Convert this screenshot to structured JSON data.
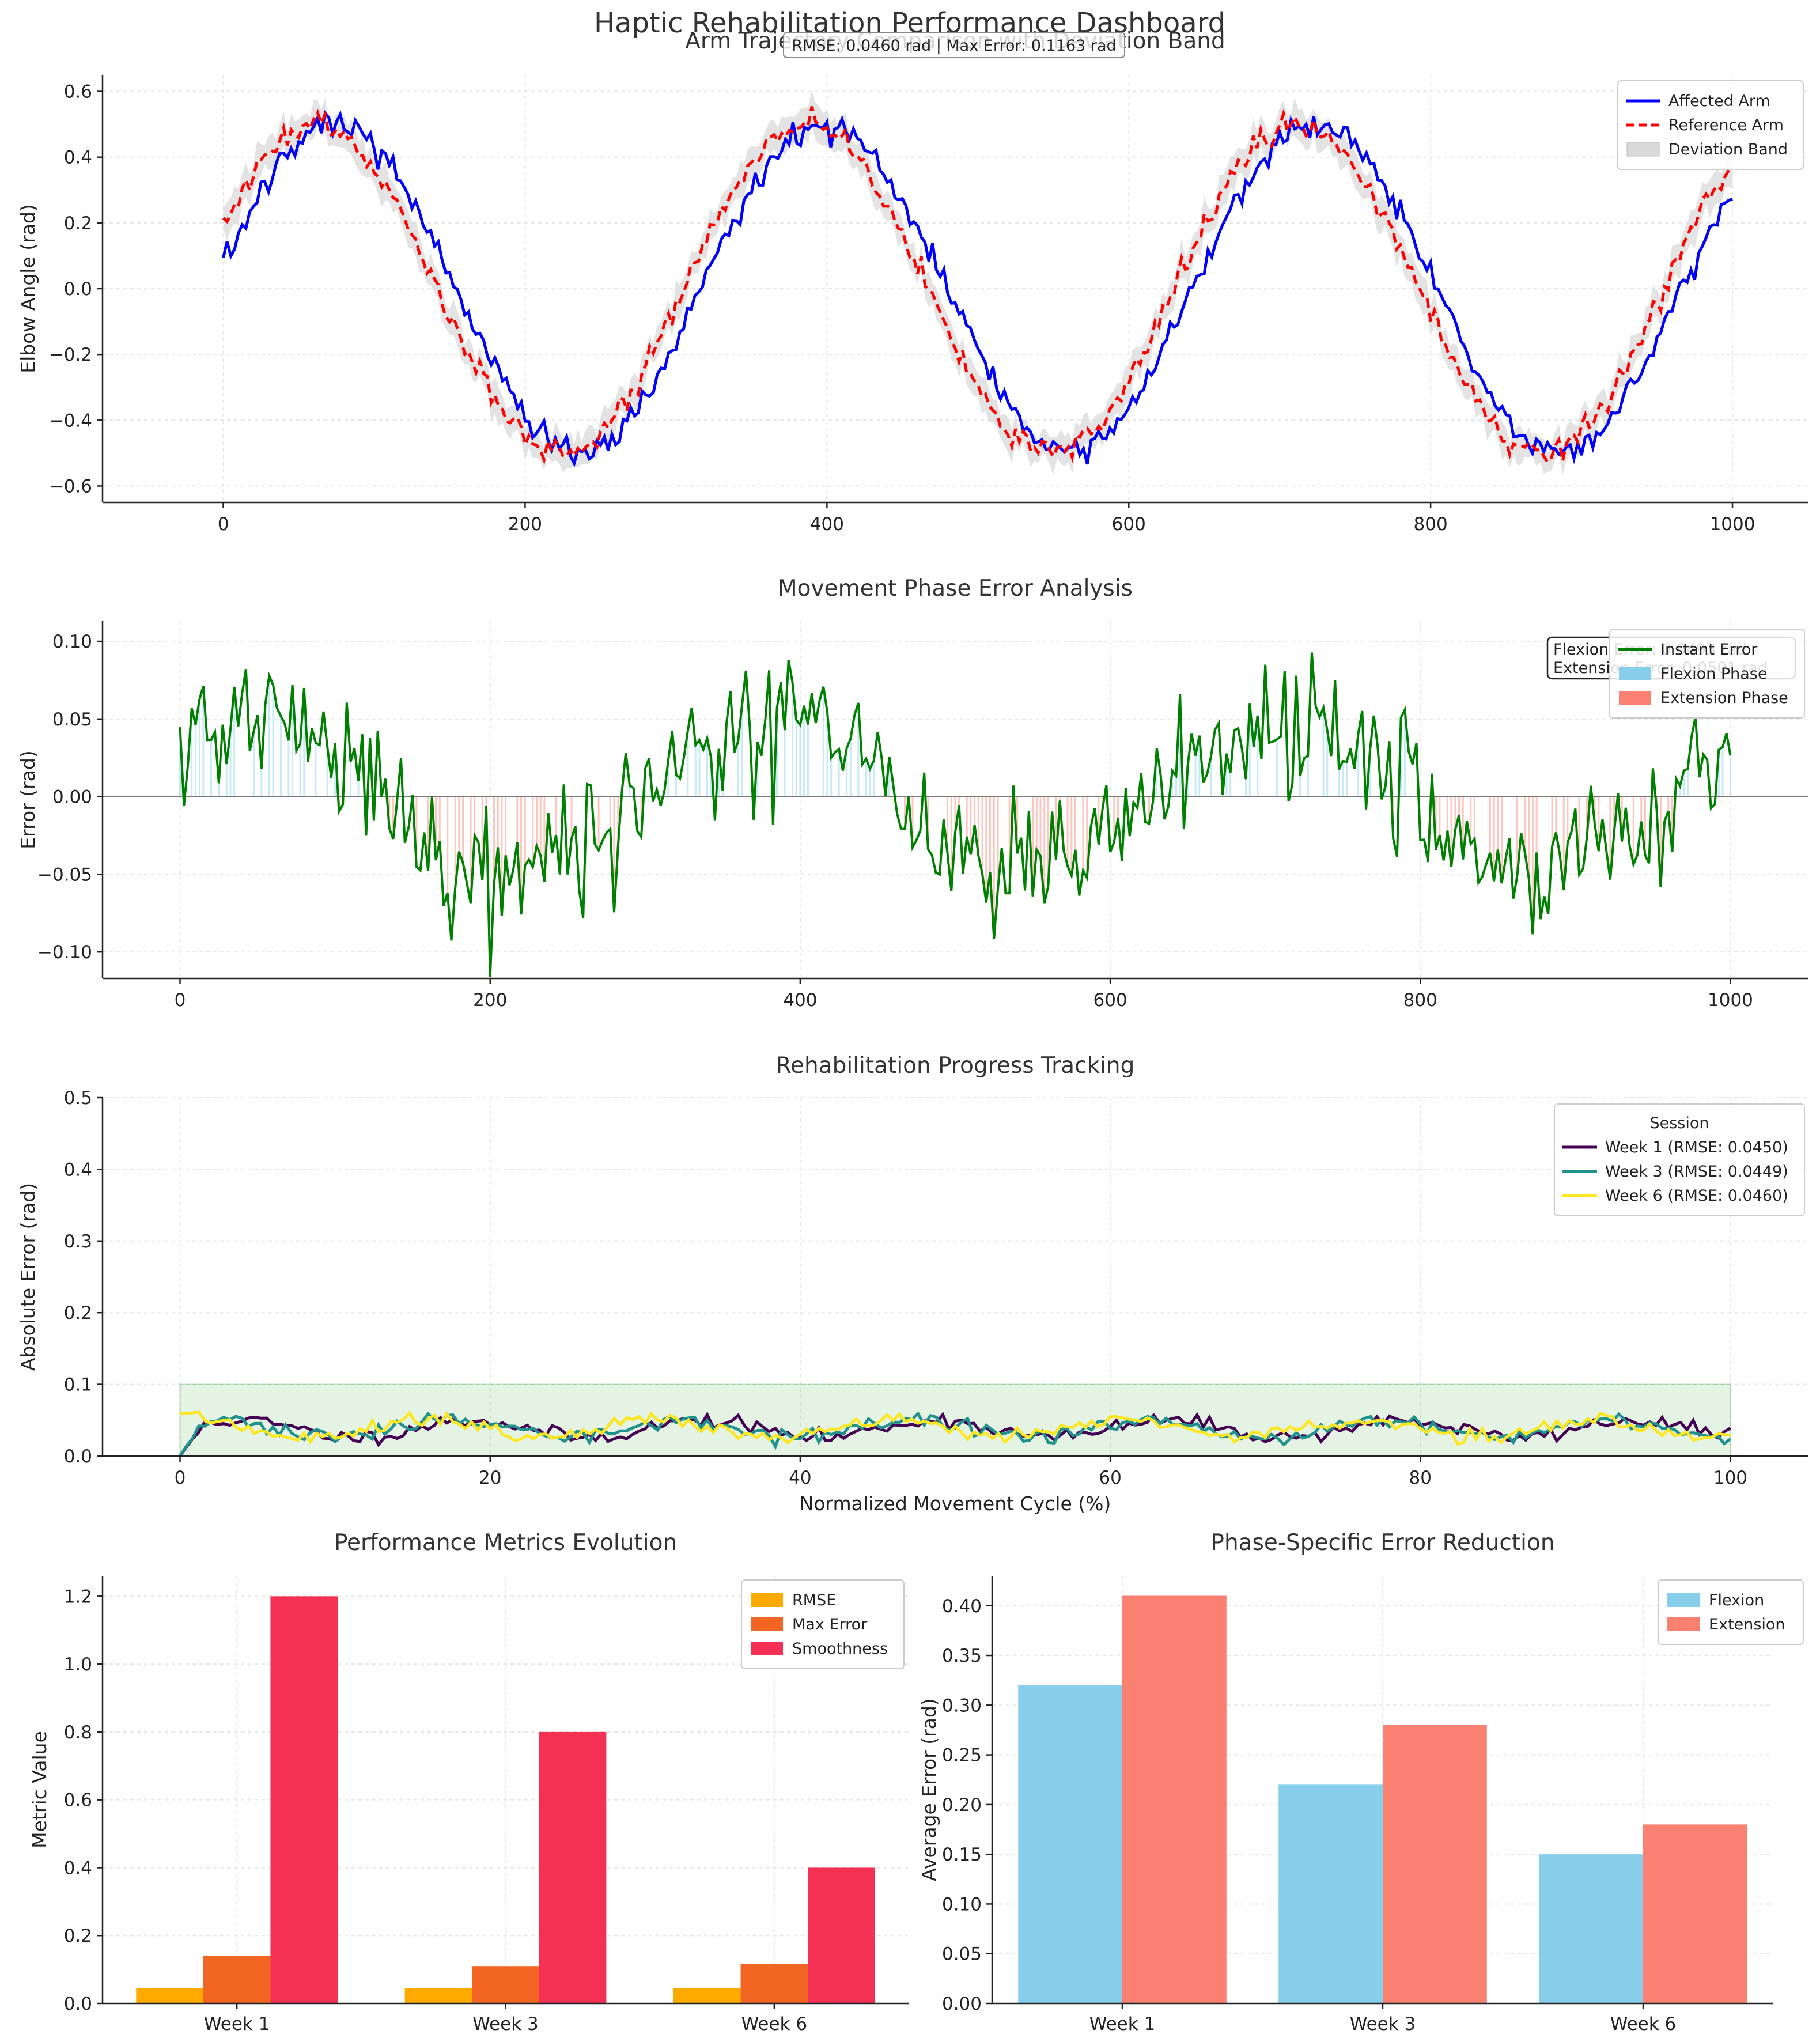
{
  "dashboard": {
    "title": "Haptic Rehabilitation Performance Dashboard"
  },
  "chart_data": [
    {
      "id": "trajectory",
      "type": "line",
      "title": "Arm Trajectory Comparison with Deviation Band",
      "annotation": "RMSE: 0.0460 rad | Max Error: 0.1163 rad",
      "xlabel": "",
      "ylabel": "Elbow Angle (rad)",
      "xlim": [
        -80,
        1050
      ],
      "ylim": [
        -0.65,
        0.65
      ],
      "xticks": [
        0,
        200,
        400,
        600,
        800,
        1000
      ],
      "yticks": [
        -0.6,
        -0.4,
        -0.2,
        0.0,
        0.2,
        0.4,
        0.6
      ],
      "grid": true,
      "legend_position": "top-right",
      "x_range": [
        0,
        1000
      ],
      "period": 325,
      "amplitude": 0.5,
      "series": [
        {
          "name": "Affected Arm",
          "color": "#0000ff",
          "style": "solid"
        },
        {
          "name": "Reference Arm",
          "color": "#ff0000",
          "style": "dashed"
        },
        {
          "name": "Deviation Band",
          "color": "#d9d9d9",
          "style": "band"
        }
      ]
    },
    {
      "id": "phase_error",
      "type": "line",
      "title": "Movement Phase Error Analysis",
      "xlabel": "",
      "ylabel": "Error (rad)",
      "xlim": [
        -50,
        1050
      ],
      "ylim": [
        -0.117,
        0.113
      ],
      "xticks": [
        0,
        200,
        400,
        600,
        800,
        1000
      ],
      "yticks": [
        -0.1,
        -0.05,
        0.0,
        0.05,
        0.1
      ],
      "grid": true,
      "legend_position": "top-right",
      "annotation_lines": [
        "Flexion Error: 0.0493 rad",
        "Extension Error: 0.0501 rad"
      ],
      "series": [
        {
          "name": "Instant Error",
          "color": "#008000"
        },
        {
          "name": "Flexion Phase",
          "color": "#87ceeb"
        },
        {
          "name": "Extension Phase",
          "color": "#fa8072"
        }
      ]
    },
    {
      "id": "progress",
      "type": "line",
      "title": "Rehabilitation Progress Tracking",
      "xlabel": "Normalized Movement Cycle (%)",
      "ylabel": "Absolute Error (rad)",
      "xlim": [
        -5,
        105
      ],
      "ylim": [
        0,
        0.5
      ],
      "xticks": [
        0,
        20,
        40,
        60,
        80,
        100
      ],
      "yticks": [
        0.0,
        0.1,
        0.2,
        0.3,
        0.4,
        0.5
      ],
      "grid": true,
      "legend_title": "Session",
      "legend_position": "top-right",
      "target_band": [
        0,
        0.1
      ],
      "series": [
        {
          "name": "Week 1 (RMSE: 0.0450)",
          "color": "#440154"
        },
        {
          "name": "Week 3 (RMSE: 0.0449)",
          "color": "#21918c"
        },
        {
          "name": "Week 6 (RMSE: 0.0460)",
          "color": "#fde725"
        }
      ]
    },
    {
      "id": "metrics",
      "type": "bar",
      "title": "Performance Metrics Evolution",
      "xlabel": "",
      "ylabel": "Metric Value",
      "categories": [
        "Week 1",
        "Week 3",
        "Week 6"
      ],
      "ylim": [
        0,
        1.26
      ],
      "yticks": [
        0.0,
        0.2,
        0.4,
        0.6,
        0.8,
        1.0,
        1.2
      ],
      "grid": true,
      "legend_position": "top-right",
      "series": [
        {
          "name": "RMSE",
          "color": "#ffaa00",
          "values": [
            0.045,
            0.045,
            0.046
          ]
        },
        {
          "name": "Max Error",
          "color": "#f26522",
          "values": [
            0.14,
            0.11,
            0.116
          ]
        },
        {
          "name": "Smoothness",
          "color": "#f43054",
          "values": [
            1.2,
            0.8,
            0.4
          ]
        }
      ]
    },
    {
      "id": "phase_reduction",
      "type": "bar",
      "title": "Phase-Specific Error Reduction",
      "xlabel": "",
      "ylabel": "Average Error (rad)",
      "categories": [
        "Week 1",
        "Week 3",
        "Week 6"
      ],
      "ylim": [
        0,
        0.43
      ],
      "yticks": [
        0.0,
        0.05,
        0.1,
        0.15,
        0.2,
        0.25,
        0.3,
        0.35,
        0.4
      ],
      "grid": true,
      "legend_position": "top-right",
      "series": [
        {
          "name": "Flexion",
          "color": "#87ceeb",
          "values": [
            0.32,
            0.22,
            0.15
          ]
        },
        {
          "name": "Extension",
          "color": "#fa8072",
          "values": [
            0.41,
            0.28,
            0.18
          ]
        }
      ]
    }
  ]
}
